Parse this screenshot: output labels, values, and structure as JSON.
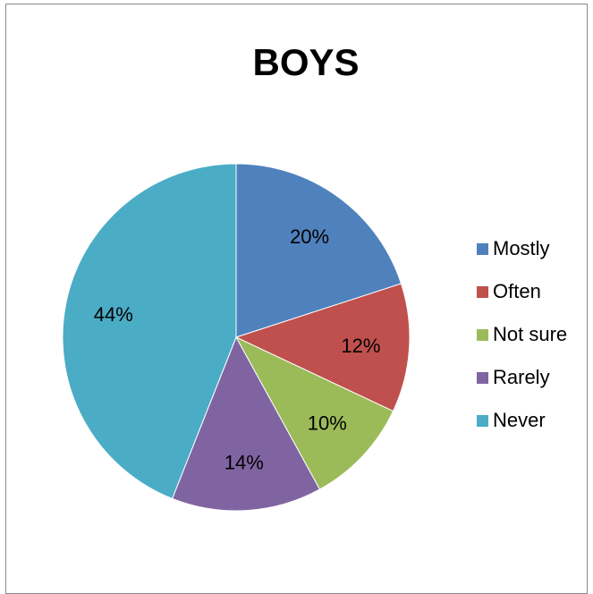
{
  "chart_data": {
    "type": "pie",
    "title": "BOYS",
    "labels": [
      "Mostly",
      "Often",
      "Not sure",
      "Rarely",
      "Never"
    ],
    "values": [
      20,
      12,
      10,
      14,
      44
    ],
    "data_labels": [
      "20%",
      "12%",
      "10%",
      "14%",
      "44%"
    ],
    "colors": [
      "#4F81BD",
      "#C0504D",
      "#9BBB59",
      "#8064A2",
      "#4BACC6"
    ],
    "legend_position": "right",
    "start_angle": "12-o-clock",
    "direction": "clockwise"
  }
}
